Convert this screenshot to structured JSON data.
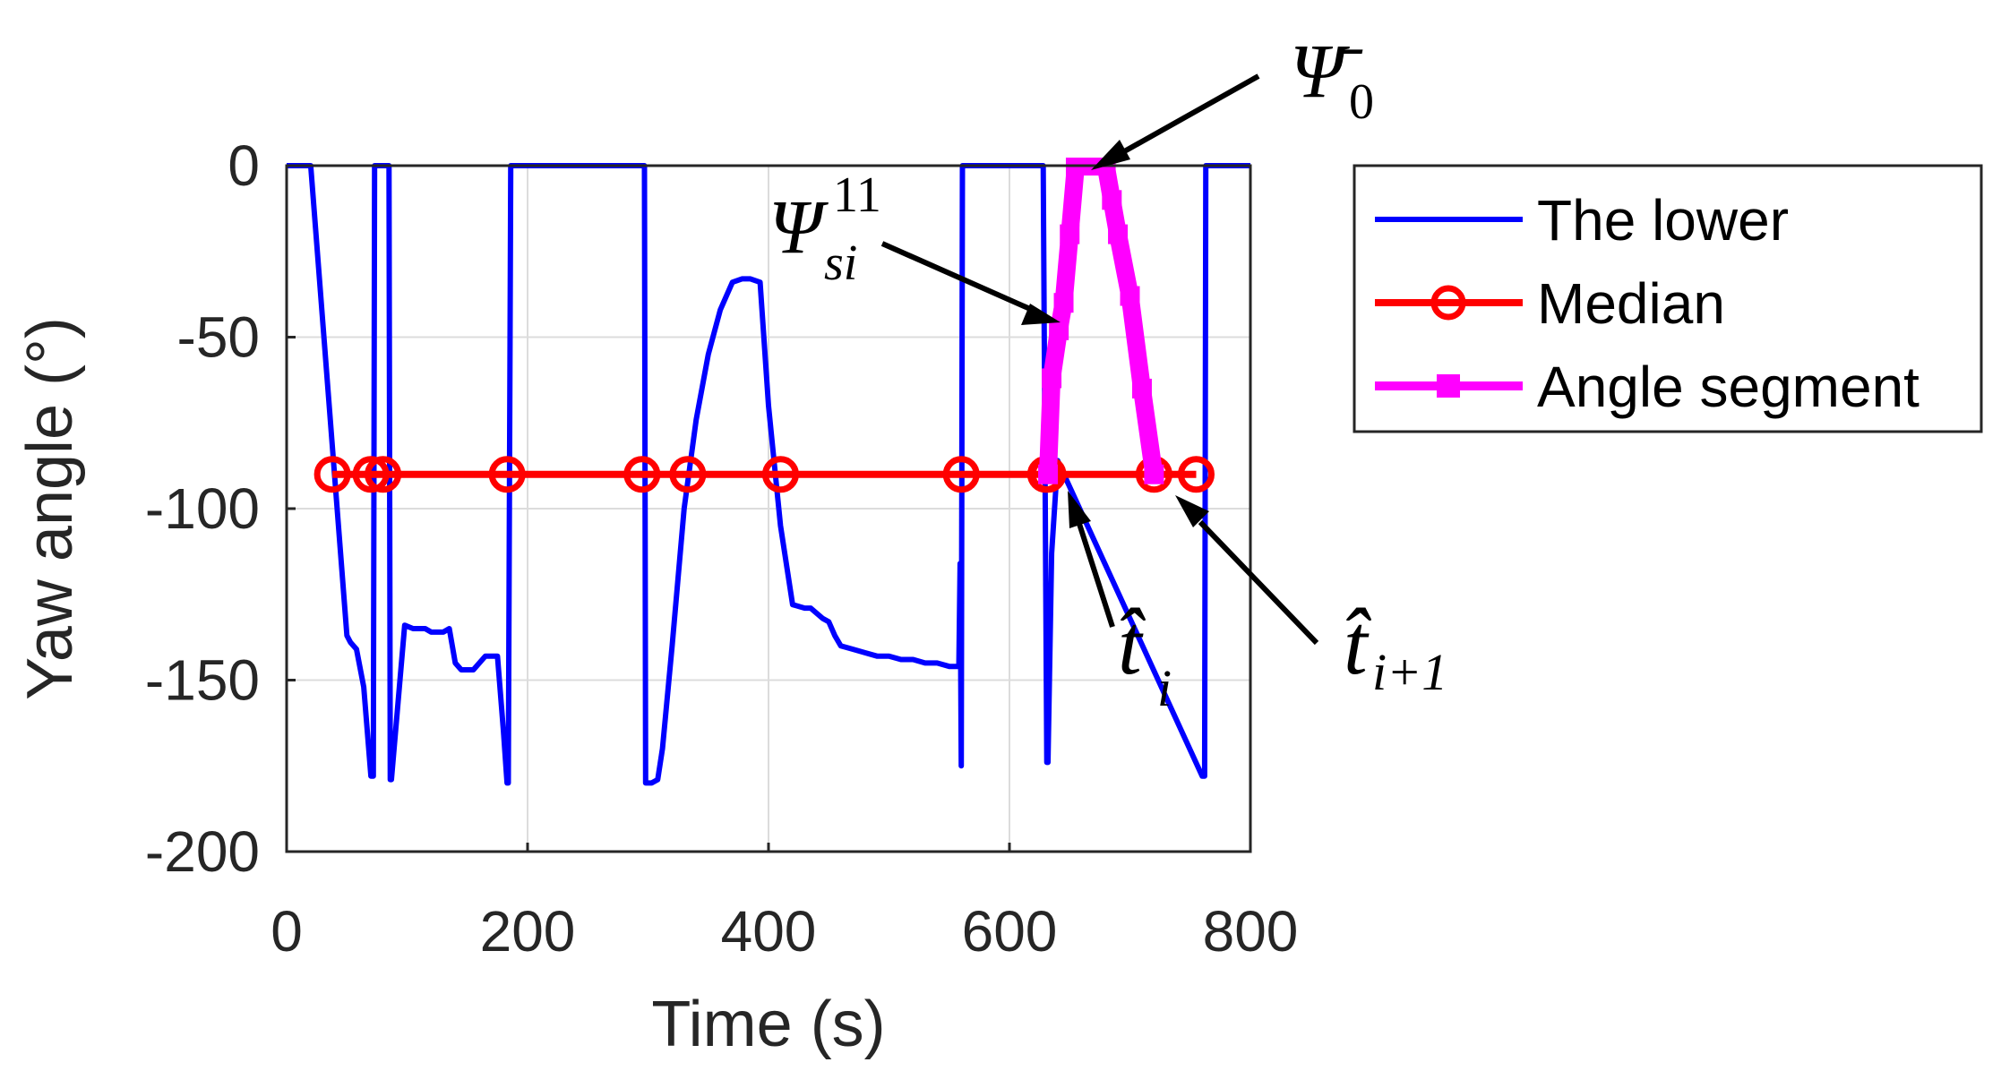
{
  "chart_data": {
    "type": "line",
    "xlabel": "Time (s)",
    "ylabel": "Yaw angle (°)",
    "xlim": [
      0,
      800
    ],
    "ylim": [
      -200,
      0
    ],
    "xticks": [
      0,
      200,
      400,
      600,
      800
    ],
    "yticks": [
      0,
      -50,
      -100,
      -150,
      -200
    ],
    "xtick_labels": [
      "0",
      "200",
      "400",
      "600",
      "800"
    ],
    "ytick_labels": [
      "0",
      "-50",
      "-100",
      "-150",
      "-200"
    ],
    "grid": true,
    "legend_position": "outside-right",
    "series": [
      {
        "name": "The lower",
        "color": "#0000ff",
        "marker": "none",
        "x": [
          0,
          17,
          20,
          50,
          53,
          58,
          64,
          70,
          72,
          73,
          74,
          80,
          85,
          86,
          87,
          98,
          105,
          115,
          120,
          130,
          135,
          140,
          145,
          150,
          155,
          165,
          170,
          175,
          180,
          183,
          184,
          186,
          290,
          297,
          298,
          299,
          303,
          308,
          312,
          320,
          330,
          340,
          350,
          360,
          370,
          378,
          385,
          393,
          400,
          410,
          420,
          430,
          435,
          445,
          450,
          455,
          460,
          470,
          480,
          490,
          500,
          510,
          520,
          530,
          540,
          550,
          557,
          558,
          559,
          560,
          561,
          565,
          600,
          628,
          630,
          631,
          632,
          635,
          640,
          760,
          762,
          763,
          800
        ],
        "y": [
          0,
          0,
          0,
          -137,
          -139,
          -141,
          -152,
          -178,
          -178,
          0,
          0,
          0,
          0,
          -179,
          -179,
          -134,
          -135,
          -135,
          -136,
          -136,
          -135,
          -145,
          -147,
          -147,
          -147,
          -143,
          -143,
          -143,
          -165,
          -180,
          -180,
          0,
          0,
          0,
          -180,
          -180,
          -180,
          -179,
          -170,
          -140,
          -100,
          -74,
          -55,
          -42,
          -34,
          -33,
          -33,
          -34,
          -70,
          -105,
          -128,
          -129,
          -129,
          -132,
          -133,
          -137,
          -140,
          -141,
          -142,
          -143,
          -143,
          -144,
          -144,
          -145,
          -145,
          -146,
          -146,
          -146,
          -116,
          -175,
          0,
          0,
          0,
          0,
          -113,
          -174,
          -174,
          -113,
          -86,
          -178,
          -178,
          0,
          0
        ]
      },
      {
        "name": "Median",
        "color": "#ff0000",
        "marker": "o",
        "x": [
          38,
          70,
          80,
          183,
          295,
          333,
          410,
          560,
          630,
          632,
          720,
          755
        ],
        "y": [
          -90,
          -90,
          -90,
          -90,
          -90,
          -90,
          -90,
          -90,
          -90,
          -90,
          -90,
          -90
        ]
      },
      {
        "name": "Angle segment",
        "color": "#ff00ff",
        "marker": "s",
        "x": [
          632,
          635,
          641,
          645,
          650,
          655,
          662,
          675,
          680,
          685,
          690,
          700,
          710,
          720
        ],
        "y": [
          -90,
          -62,
          -48,
          -40,
          -20,
          0,
          0,
          0,
          0,
          -10,
          -20,
          -38,
          -65,
          -90
        ]
      }
    ],
    "annotations": [
      {
        "symbol": "Ψ̄",
        "subscript": "0",
        "superscript": ""
      },
      {
        "symbol": "Ψ",
        "subscript": "si",
        "superscript": "11"
      },
      {
        "symbol": "t̂",
        "subscript": "i",
        "superscript": ""
      },
      {
        "symbol": "t̂",
        "subscript": "i+1",
        "superscript": ""
      }
    ]
  }
}
